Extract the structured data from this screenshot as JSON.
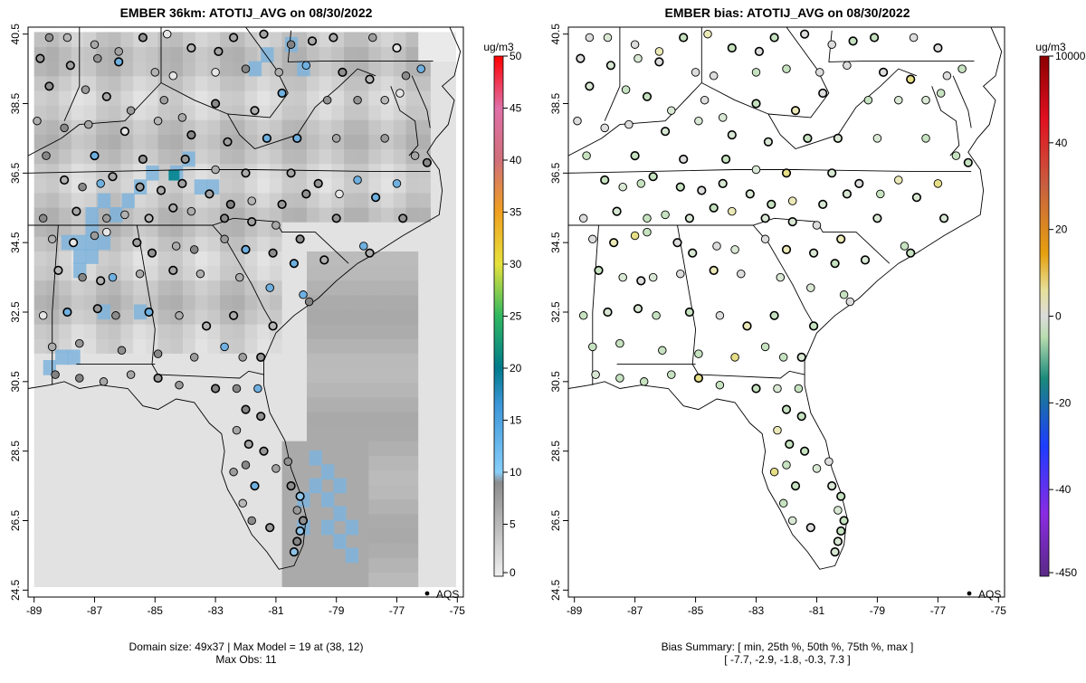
{
  "chart_data": [
    {
      "type": "heatmap",
      "title": "EMBER 36km: ATOTIJ_AVG on 08/30/2022",
      "xticks": [
        "-89",
        "-87",
        "-85",
        "-83",
        "-81",
        "-79",
        "-77",
        "-75"
      ],
      "yticks": [
        "24.5",
        "26.5",
        "28.5",
        "30.5",
        "32.5",
        "34.5",
        "36.5",
        "38.5",
        "40.5"
      ],
      "xlim": [
        -89.2,
        -74.8
      ],
      "ylim": [
        24.3,
        40.7
      ],
      "colorbar": {
        "unit": "ug/m3",
        "ticks": [
          "0",
          "5",
          "10",
          "15",
          "20",
          "25",
          "30",
          "35",
          "40",
          "45",
          "50"
        ],
        "range": [
          0,
          50
        ]
      },
      "legend": {
        "label": "AQS",
        "position": "bottom-right"
      },
      "footer": [
        "Domain size: 49x37 | Max Model = 19 at (38, 12)",
        "Max Obs: 11"
      ],
      "model_max": 19,
      "obs_max": 11
    },
    {
      "type": "scatter",
      "title": "EMBER bias: ATOTIJ_AVG on 08/30/2022",
      "xticks": [
        "-89",
        "-87",
        "-85",
        "-83",
        "-81",
        "-79",
        "-77",
        "-75"
      ],
      "yticks": [
        "24.5",
        "26.5",
        "28.5",
        "30.5",
        "32.5",
        "34.5",
        "36.5",
        "38.5",
        "40.5"
      ],
      "xlim": [
        -89.2,
        -74.8
      ],
      "ylim": [
        24.3,
        40.7
      ],
      "colorbar": {
        "unit": "ug/m3",
        "ticks": [
          "-450",
          "-40",
          "-20",
          "0",
          "20",
          "40",
          "10000"
        ]
      },
      "legend": {
        "label": "AQS",
        "position": "bottom-right"
      },
      "footer": [
        "Bias Summary: [ min, 25th %, 50th %, 75th %, max ]",
        "[ -7.7,   -2.9,   -1.8,   -0.3,   7.3 ]"
      ],
      "bias_summary": {
        "min": -7.7,
        "p25": -2.9,
        "p50": -1.8,
        "p75": -0.3,
        "max": 7.3
      }
    }
  ]
}
